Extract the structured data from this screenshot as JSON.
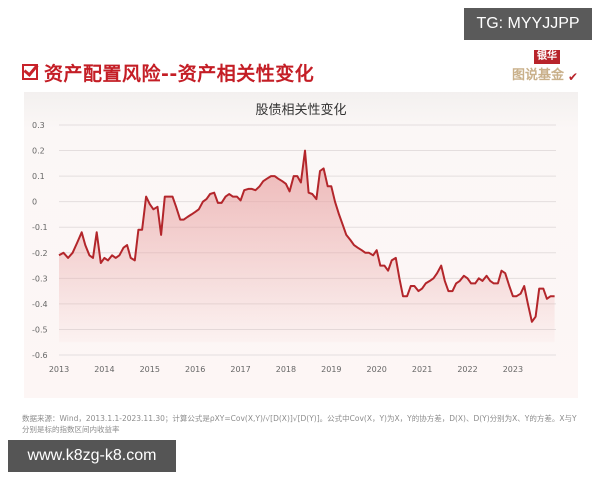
{
  "watermark_top": "TG: MYYJJPP",
  "watermark_bottom": "www.k8zg-k8.com",
  "header": {
    "icon": "checkbox-icon",
    "title": "资产配置风险--资产相关性变化",
    "logo_top": "银华",
    "logo_bottom": "图说基金",
    "title_color": "#c41e26"
  },
  "footnote": "数据来源：Wind，2013.1.1-2023.11.30；计算公式是ρXY=Cov(X,Y)/√[D(X)]√[D(Y)]。公式中Cov(X，Y)为X，Y的协方差，D(X)、D(Y)分别为X、Y的方差。X与Y分别是标的指数区间内收益率",
  "chart_data": {
    "type": "area",
    "title": "股债相关性变化",
    "xlabel": "",
    "ylabel": "",
    "ylim": [
      -0.6,
      0.3
    ],
    "xlim": [
      2013,
      2023.95
    ],
    "yticks": [
      "0.3",
      "0.2",
      "0.1",
      "0",
      "-0.1",
      "-0.2",
      "-0.3",
      "-0.4",
      "-0.5",
      "-0.6"
    ],
    "xticks": [
      "2013",
      "2014",
      "2015",
      "2016",
      "2017",
      "2018",
      "2019",
      "2020",
      "2021",
      "2022",
      "2023"
    ],
    "grid": true,
    "legend": "none",
    "line_color": "#b3262b",
    "fill_color": "#e8a0a0",
    "series": [
      {
        "name": "股债相关性",
        "x": [
          2013.0,
          2013.1,
          2013.2,
          2013.3,
          2013.4,
          2013.5,
          2013.58,
          2013.67,
          2013.75,
          2013.83,
          2013.92,
          2014.0,
          2014.08,
          2014.17,
          2014.25,
          2014.33,
          2014.42,
          2014.5,
          2014.58,
          2014.67,
          2014.75,
          2014.83,
          2014.92,
          2015.0,
          2015.08,
          2015.17,
          2015.25,
          2015.33,
          2015.42,
          2015.5,
          2015.58,
          2015.67,
          2015.75,
          2015.83,
          2015.92,
          2016.0,
          2016.08,
          2016.17,
          2016.25,
          2016.33,
          2016.42,
          2016.5,
          2016.58,
          2016.67,
          2016.75,
          2016.83,
          2016.92,
          2017.0,
          2017.08,
          2017.17,
          2017.25,
          2017.33,
          2017.42,
          2017.5,
          2017.58,
          2017.67,
          2017.75,
          2017.83,
          2017.92,
          2018.0,
          2018.08,
          2018.17,
          2018.25,
          2018.33,
          2018.42,
          2018.5,
          2018.58,
          2018.67,
          2018.75,
          2018.83,
          2018.92,
          2019.0,
          2019.08,
          2019.17,
          2019.25,
          2019.33,
          2019.42,
          2019.5,
          2019.58,
          2019.67,
          2019.75,
          2019.83,
          2019.92,
          2020.0,
          2020.08,
          2020.17,
          2020.25,
          2020.33,
          2020.42,
          2020.5,
          2020.58,
          2020.67,
          2020.75,
          2020.83,
          2020.92,
          2021.0,
          2021.08,
          2021.17,
          2021.25,
          2021.33,
          2021.42,
          2021.5,
          2021.58,
          2021.67,
          2021.75,
          2021.83,
          2021.92,
          2022.0,
          2022.08,
          2022.17,
          2022.25,
          2022.33,
          2022.42,
          2022.5,
          2022.58,
          2022.67,
          2022.75,
          2022.83,
          2022.92,
          2023.0,
          2023.08,
          2023.17,
          2023.25,
          2023.33,
          2023.42,
          2023.5,
          2023.58,
          2023.67,
          2023.75,
          2023.83,
          2023.92
        ],
        "values": [
          -0.21,
          -0.2,
          -0.22,
          -0.2,
          -0.16,
          -0.12,
          -0.17,
          -0.21,
          -0.22,
          -0.12,
          -0.24,
          -0.22,
          -0.23,
          -0.21,
          -0.22,
          -0.21,
          -0.18,
          -0.17,
          -0.22,
          -0.23,
          -0.11,
          -0.11,
          0.02,
          -0.01,
          -0.03,
          -0.02,
          -0.13,
          0.02,
          0.02,
          0.02,
          -0.02,
          -0.07,
          -0.07,
          -0.06,
          -0.05,
          -0.04,
          -0.03,
          0.0,
          0.01,
          0.03,
          0.035,
          -0.005,
          -0.005,
          0.02,
          0.03,
          0.02,
          0.02,
          0.005,
          0.045,
          0.05,
          0.05,
          0.045,
          0.06,
          0.08,
          0.09,
          0.1,
          0.1,
          0.09,
          0.08,
          0.07,
          0.04,
          0.1,
          0.1,
          0.075,
          0.2,
          0.035,
          0.03,
          0.01,
          0.12,
          0.13,
          0.06,
          0.06,
          0.0,
          -0.05,
          -0.09,
          -0.13,
          -0.15,
          -0.17,
          -0.18,
          -0.19,
          -0.2,
          -0.2,
          -0.21,
          -0.19,
          -0.25,
          -0.25,
          -0.27,
          -0.23,
          -0.22,
          -0.3,
          -0.37,
          -0.37,
          -0.33,
          -0.33,
          -0.35,
          -0.34,
          -0.32,
          -0.31,
          -0.3,
          -0.28,
          -0.25,
          -0.31,
          -0.35,
          -0.35,
          -0.32,
          -0.31,
          -0.29,
          -0.3,
          -0.32,
          -0.32,
          -0.3,
          -0.31,
          -0.29,
          -0.31,
          -0.32,
          -0.32,
          -0.27,
          -0.28,
          -0.33,
          -0.37,
          -0.37,
          -0.36,
          -0.33,
          -0.4,
          -0.47,
          -0.45,
          -0.34,
          -0.34,
          -0.38,
          -0.37,
          -0.37
        ]
      }
    ]
  }
}
